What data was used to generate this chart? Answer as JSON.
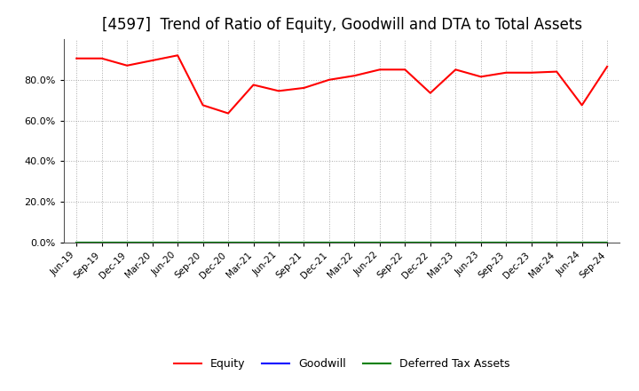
{
  "title": "[4597]  Trend of Ratio of Equity, Goodwill and DTA to Total Assets",
  "x_labels": [
    "Jun-19",
    "Sep-19",
    "Dec-19",
    "Mar-20",
    "Jun-20",
    "Sep-20",
    "Dec-20",
    "Mar-21",
    "Jun-21",
    "Sep-21",
    "Dec-21",
    "Mar-22",
    "Jun-22",
    "Sep-22",
    "Dec-22",
    "Mar-23",
    "Jun-23",
    "Sep-23",
    "Dec-23",
    "Mar-24",
    "Jun-24",
    "Sep-24"
  ],
  "equity": [
    90.5,
    90.5,
    87.0,
    89.5,
    92.0,
    67.5,
    63.5,
    77.5,
    74.5,
    76.0,
    80.0,
    82.0,
    85.0,
    85.0,
    73.5,
    85.0,
    81.5,
    83.5,
    83.5,
    84.0,
    67.5,
    86.5
  ],
  "goodwill": [
    0,
    0,
    0,
    0,
    0,
    0,
    0,
    0,
    0,
    0,
    0,
    0,
    0,
    0,
    0,
    0,
    0,
    0,
    0,
    0,
    0,
    0
  ],
  "dta": [
    0,
    0,
    0,
    0,
    0,
    0,
    0,
    0,
    0,
    0,
    0,
    0,
    0,
    0,
    0,
    0,
    0,
    0,
    0,
    0,
    0,
    0
  ],
  "equity_color": "#FF0000",
  "goodwill_color": "#0000FF",
  "dta_color": "#008000",
  "ylim": [
    0,
    100
  ],
  "yticks": [
    0,
    20,
    40,
    60,
    80
  ],
  "ytick_labels": [
    "0.0%",
    "20.0%",
    "40.0%",
    "60.0%",
    "80.0%"
  ],
  "background_color": "#FFFFFF",
  "plot_bg_color": "#FFFFFF",
  "grid_color": "#AAAAAA",
  "title_fontsize": 12,
  "legend_entries": [
    "Equity",
    "Goodwill",
    "Deferred Tax Assets"
  ],
  "line_width": 1.5
}
